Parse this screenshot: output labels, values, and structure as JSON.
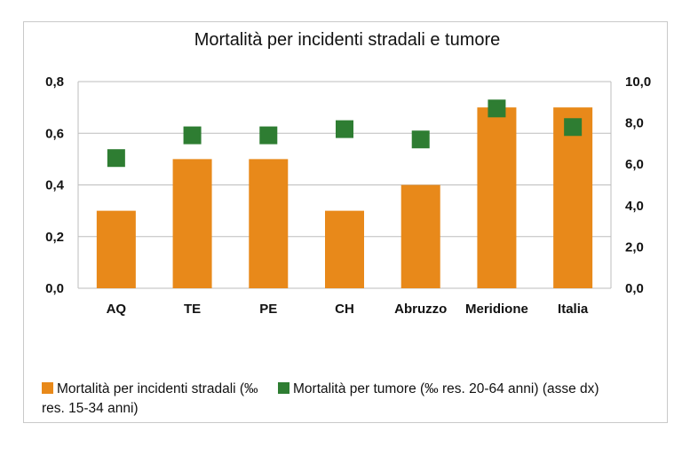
{
  "chart_data": {
    "type": "bar",
    "title": "Mortalità per incidenti stradali e tumore",
    "categories": [
      "AQ",
      "TE",
      "PE",
      "CH",
      "Abruzzo",
      "Meridione",
      "Italia"
    ],
    "series": [
      {
        "name": "Mortalità per incidenti stradali (‰ res. 15-34 anni)",
        "type": "bar",
        "axis": "left",
        "color": "#E8891A",
        "values": [
          0.3,
          0.5,
          0.5,
          0.3,
          0.4,
          0.7,
          0.7
        ]
      },
      {
        "name": "Mortalità per tumore (‰ res. 20-64 anni) (asse dx)",
        "type": "marker",
        "axis": "right",
        "color": "#2E7D32",
        "values": [
          6.3,
          7.4,
          7.4,
          7.7,
          7.2,
          8.7,
          7.8
        ]
      }
    ],
    "ylim_left": [
      0,
      0.8
    ],
    "ylim_right": [
      0,
      10
    ],
    "yticks_left": [
      "0,0",
      "0,2",
      "0,4",
      "0,6",
      "0,8"
    ],
    "yticks_right": [
      "0,0",
      "2,0",
      "4,0",
      "6,0",
      "8,0",
      "10,0"
    ],
    "grid": true,
    "legend_position": "bottom"
  }
}
